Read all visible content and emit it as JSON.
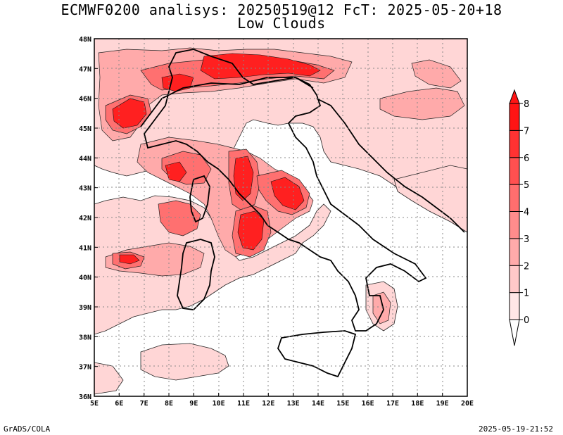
{
  "header": {
    "title_line1": "ECMWF0200 analisys: 20250519@12 FcT: 2025-05-20+18",
    "title_line2": "Low Clouds"
  },
  "axes": {
    "lat_labels": [
      "48N",
      "47N",
      "46N",
      "45N",
      "44N",
      "43N",
      "42N",
      "41N",
      "40N",
      "39N",
      "38N",
      "37N",
      "36N"
    ],
    "lon_labels": [
      "5E",
      "6E",
      "7E",
      "8E",
      "9E",
      "10E",
      "11E",
      "12E",
      "13E",
      "14E",
      "15E",
      "16E",
      "17E",
      "18E",
      "19E",
      "20E"
    ],
    "lat_range": [
      36,
      48
    ],
    "lon_range": [
      5,
      20
    ]
  },
  "colorbar": {
    "levels": [
      "0",
      "1",
      "2",
      "3",
      "4",
      "5",
      "6",
      "7",
      "8"
    ],
    "colors": [
      "#ffe6e6",
      "#ffc8c8",
      "#ffaaaa",
      "#ff8c8c",
      "#ff6e6e",
      "#ff5050",
      "#ff3232",
      "#ff1414"
    ]
  },
  "footer": {
    "credit": "GrADS/COLA",
    "timestamp": "2025-05-19-21:52"
  }
}
